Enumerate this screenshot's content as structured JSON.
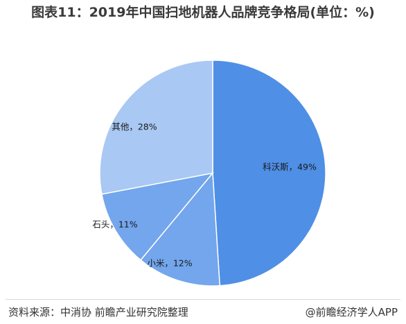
{
  "title": "图表11：2019年中国扫地机器人品牌竞争格局(单位：%)",
  "source": "资料来源：中消协 前瞻产业研究院整理",
  "credit": "@前瞻经济学人APP",
  "colors": {
    "slice_primary": "#4f8fe6",
    "slice_mid": "#73a6ec",
    "slice_light": "#a9c8f3",
    "slice_stroke": "#ffffff"
  },
  "chart_data": {
    "type": "pie",
    "title": "图表11：2019年中国扫地机器人品牌竞争格局(单位：%)",
    "unit": "%",
    "start_angle": "12 o'clock, clockwise",
    "slices": [
      {
        "label": "科沃斯",
        "value": 49,
        "text": "科沃斯，49%",
        "color": "#4f8fe6"
      },
      {
        "label": "小米",
        "value": 12,
        "text": "小米，12%",
        "color": "#73a6ec"
      },
      {
        "label": "石头",
        "value": 11,
        "text": "石头，11%",
        "color": "#73a6ec"
      },
      {
        "label": "其他",
        "value": 28,
        "text": "其他，28%",
        "color": "#a9c8f3"
      }
    ]
  }
}
